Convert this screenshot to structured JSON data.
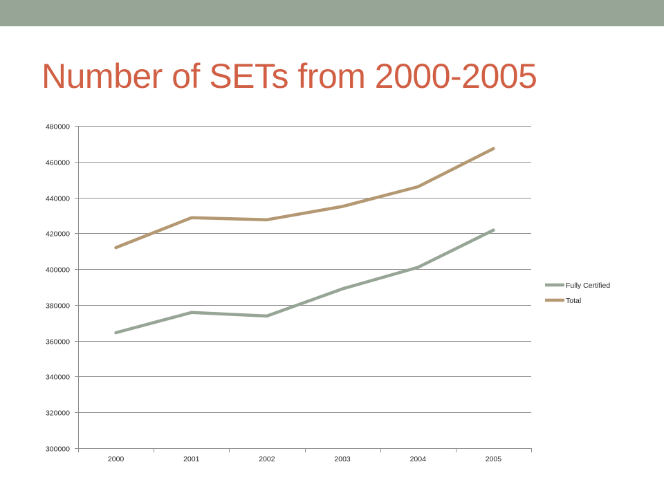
{
  "slide": {
    "title": "Number of SETs from 2000-2005",
    "accent_bar_color": "#96a595",
    "title_color": "#d05f44"
  },
  "chart_data": {
    "type": "line",
    "title": "",
    "xlabel": "",
    "ylabel": "",
    "categories": [
      "2000",
      "2001",
      "2002",
      "2003",
      "2004",
      "2005"
    ],
    "ylim": [
      300000,
      480000
    ],
    "ytick_step": 20000,
    "grid": true,
    "legend_position": "right",
    "series": [
      {
        "name": "Fully Certified",
        "color": "#96a595",
        "values": [
          364500,
          375800,
          373800,
          389000,
          401000,
          421800
        ]
      },
      {
        "name": "Total",
        "color": "#b39872",
        "values": [
          412000,
          428700,
          427600,
          435000,
          446000,
          467300
        ]
      }
    ]
  }
}
